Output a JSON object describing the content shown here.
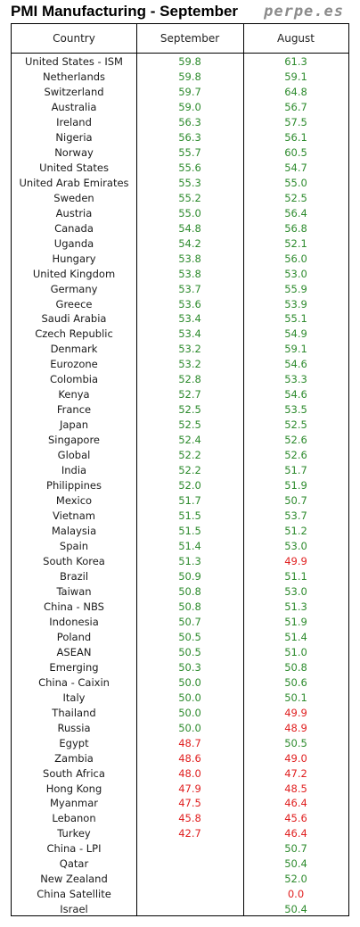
{
  "title": "PMI Manufacturing - September",
  "source": "perpe.es",
  "colors": {
    "above_50": "#2e8b2e",
    "below_50": "#e02020",
    "text": "#1a1a1a",
    "border": "#000000"
  },
  "chart_data": {
    "type": "table",
    "columns": [
      "Country",
      "September",
      "August"
    ],
    "threshold": 50,
    "rows": [
      {
        "country": "United States - ISM",
        "september": "59.8",
        "august": "61.3"
      },
      {
        "country": "Netherlands",
        "september": "59.8",
        "august": "59.1"
      },
      {
        "country": "Switzerland",
        "september": "59.7",
        "august": "64.8"
      },
      {
        "country": "Australia",
        "september": "59.0",
        "august": "56.7"
      },
      {
        "country": "Ireland",
        "september": "56.3",
        "august": "57.5"
      },
      {
        "country": "Nigeria",
        "september": "56.3",
        "august": "56.1"
      },
      {
        "country": "Norway",
        "september": "55.7",
        "august": "60.5"
      },
      {
        "country": "United States",
        "september": "55.6",
        "august": "54.7"
      },
      {
        "country": "United Arab Emirates",
        "september": "55.3",
        "august": "55.0"
      },
      {
        "country": "Sweden",
        "september": "55.2",
        "august": "52.5"
      },
      {
        "country": "Austria",
        "september": "55.0",
        "august": "56.4"
      },
      {
        "country": "Canada",
        "september": "54.8",
        "august": "56.8"
      },
      {
        "country": "Uganda",
        "september": "54.2",
        "august": "52.1"
      },
      {
        "country": "Hungary",
        "september": "53.8",
        "august": "56.0"
      },
      {
        "country": "United Kingdom",
        "september": "53.8",
        "august": "53.0"
      },
      {
        "country": "Germany",
        "september": "53.7",
        "august": "55.9"
      },
      {
        "country": "Greece",
        "september": "53.6",
        "august": "53.9"
      },
      {
        "country": "Saudi Arabia",
        "september": "53.4",
        "august": "55.1"
      },
      {
        "country": "Czech Republic",
        "september": "53.4",
        "august": "54.9"
      },
      {
        "country": "Denmark",
        "september": "53.2",
        "august": "59.1"
      },
      {
        "country": "Eurozone",
        "september": "53.2",
        "august": "54.6"
      },
      {
        "country": "Colombia",
        "september": "52.8",
        "august": "53.3"
      },
      {
        "country": "Kenya",
        "september": "52.7",
        "august": "54.6"
      },
      {
        "country": "France",
        "september": "52.5",
        "august": "53.5"
      },
      {
        "country": "Japan",
        "september": "52.5",
        "august": "52.5"
      },
      {
        "country": "Singapore",
        "september": "52.4",
        "august": "52.6"
      },
      {
        "country": "Global",
        "september": "52.2",
        "august": "52.6"
      },
      {
        "country": "India",
        "september": "52.2",
        "august": "51.7"
      },
      {
        "country": "Philippines",
        "september": "52.0",
        "august": "51.9"
      },
      {
        "country": "Mexico",
        "september": "51.7",
        "august": "50.7"
      },
      {
        "country": "Vietnam",
        "september": "51.5",
        "august": "53.7"
      },
      {
        "country": "Malaysia",
        "september": "51.5",
        "august": "51.2"
      },
      {
        "country": "Spain",
        "september": "51.4",
        "august": "53.0"
      },
      {
        "country": "South Korea",
        "september": "51.3",
        "august": "49.9"
      },
      {
        "country": "Brazil",
        "september": "50.9",
        "august": "51.1"
      },
      {
        "country": "Taiwan",
        "september": "50.8",
        "august": "53.0"
      },
      {
        "country": "China - NBS",
        "september": "50.8",
        "august": "51.3"
      },
      {
        "country": "Indonesia",
        "september": "50.7",
        "august": "51.9"
      },
      {
        "country": "Poland",
        "september": "50.5",
        "august": "51.4"
      },
      {
        "country": "ASEAN",
        "september": "50.5",
        "august": "51.0"
      },
      {
        "country": "Emerging",
        "september": "50.3",
        "august": "50.8"
      },
      {
        "country": "China - Caixin",
        "september": "50.0",
        "august": "50.6"
      },
      {
        "country": "Italy",
        "september": "50.0",
        "august": "50.1"
      },
      {
        "country": "Thailand",
        "september": "50.0",
        "august": "49.9"
      },
      {
        "country": "Russia",
        "september": "50.0",
        "august": "48.9"
      },
      {
        "country": "Egypt",
        "september": "48.7",
        "august": "50.5"
      },
      {
        "country": "Zambia",
        "september": "48.6",
        "august": "49.0"
      },
      {
        "country": "South Africa",
        "september": "48.0",
        "august": "47.2"
      },
      {
        "country": "Hong Kong",
        "september": "47.9",
        "august": "48.5"
      },
      {
        "country": "Myanmar",
        "september": "47.5",
        "august": "46.4"
      },
      {
        "country": "Lebanon",
        "september": "45.8",
        "august": "45.6"
      },
      {
        "country": "Turkey",
        "september": "42.7",
        "august": "46.4"
      },
      {
        "country": "China - LPI",
        "september": "",
        "august": "50.7"
      },
      {
        "country": "Qatar",
        "september": "",
        "august": "50.4"
      },
      {
        "country": "New Zealand",
        "september": "",
        "august": "52.0"
      },
      {
        "country": "China Satellite",
        "september": "",
        "august": "0.0"
      },
      {
        "country": "Israel",
        "september": "",
        "august": "50.4"
      }
    ]
  }
}
